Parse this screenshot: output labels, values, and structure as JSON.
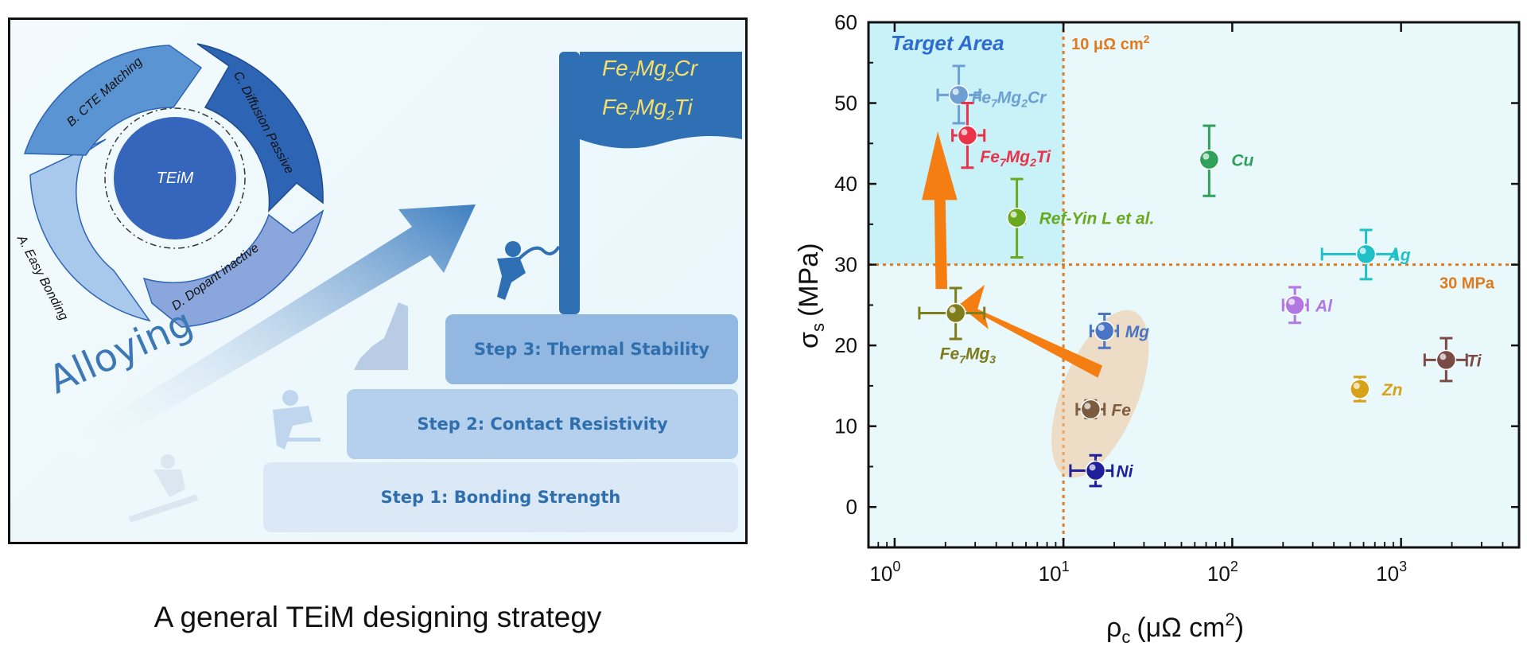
{
  "diagram": {
    "cycle_center": "TEiM",
    "cycle_items": [
      "A. Easy Bonding",
      "B. CTE Matching",
      "C. Diffusion Passive",
      "D. Dopant inactive"
    ],
    "alloying_label": "Alloying",
    "steps": [
      "Step 1: Bonding Strength",
      "Step 2: Contact Resistivity",
      "Step 3: Thermal Stability"
    ],
    "flag": {
      "line1_base": [
        "Fe",
        "Mg",
        "Cr"
      ],
      "line1_subs": [
        "7",
        "2"
      ],
      "line2_base": [
        "Fe",
        "Mg",
        "Ti"
      ],
      "line2_subs": [
        "7",
        "2"
      ]
    },
    "colors": {
      "cycle_light": "#a9c9ec",
      "cycle_mid": "#5b94d2",
      "cycle_dark": "#2e64b4",
      "center": "#3566bb",
      "flag": "#2f6fb3",
      "flag_text": "#f7e06a"
    }
  },
  "caption": "A general TEiM designing strategy",
  "chart_data": {
    "type": "scatter",
    "xlabel_base": "ρ",
    "xlabel_sub": "c",
    "xlabel_unit": "(μΩ cm",
    "xlabel_sup": "2",
    "ylabel_base": "σ",
    "ylabel_sub": "s",
    "ylabel_unit": "(MPa)",
    "x_scale": "log",
    "xlim": [
      0.7,
      5000
    ],
    "ylim": [
      -5,
      60
    ],
    "yticks": [
      0,
      10,
      20,
      30,
      40,
      50,
      60
    ],
    "xticks": [
      1,
      10,
      100,
      1000
    ],
    "xtick_labels": [
      {
        "base": "10",
        "exp": "0"
      },
      {
        "base": "10",
        "exp": "1"
      },
      {
        "base": "10",
        "exp": "2"
      },
      {
        "base": "10",
        "exp": "3"
      }
    ],
    "grid": false,
    "background": "#e8f8fb",
    "target_area": {
      "label": "Target Area",
      "x": [
        0.7,
        10
      ],
      "y": [
        30,
        60
      ],
      "color": "#c8f2f7",
      "label_color": "#2e6bd1"
    },
    "reference_lines": [
      {
        "axis": "x",
        "value": 10,
        "label": "10 μΩ cm",
        "label_sup": "2",
        "color": "#e07a1f"
      },
      {
        "axis": "y",
        "value": 30,
        "label": "30 MPa",
        "color": "#e07a1f"
      }
    ],
    "points": [
      {
        "label": "Fe",
        "label_subs": [
          "7",
          "2"
        ],
        "label_parts": [
          "Fe",
          "Mg",
          "Cr"
        ],
        "x": 2.4,
        "y": 51,
        "xerr": [
          1.8,
          3.2
        ],
        "yerr": [
          47.5,
          54.6
        ],
        "color": "#6d9fd2"
      },
      {
        "label": "Fe",
        "label_subs": [
          "7",
          "2"
        ],
        "label_parts": [
          "Fe",
          "Mg",
          "Ti"
        ],
        "x": 2.7,
        "y": 46,
        "xerr": [
          2.2,
          3.4
        ],
        "yerr": [
          42,
          50
        ],
        "color": "#e8334a"
      },
      {
        "label": "Ref-Yin L et al.",
        "x": 5.3,
        "y": 35.8,
        "xerr": [
          4.8,
          5.9
        ],
        "yerr": [
          30.9,
          40.6
        ],
        "color": "#6aa81f"
      },
      {
        "label": "Fe",
        "label_subs": [
          "7",
          "3"
        ],
        "label_parts": [
          "Fe",
          "Mg"
        ],
        "x": 2.3,
        "y": 24,
        "xerr": [
          1.4,
          3.4
        ],
        "yerr": [
          20.8,
          27.1
        ],
        "color": "#7d7d1c"
      },
      {
        "label": "Cu",
        "x": 73,
        "y": 43,
        "xerr": [
          67,
          80
        ],
        "yerr": [
          38.5,
          47.2
        ],
        "color": "#2fa15b"
      },
      {
        "label": "Ag",
        "x": 620,
        "y": 31.3,
        "xerr": [
          340,
          930
        ],
        "yerr": [
          28.2,
          34.3
        ],
        "color": "#20c0c8"
      },
      {
        "label": "Al",
        "x": 235,
        "y": 25,
        "xerr": [
          200,
          280
        ],
        "yerr": [
          22.8,
          27.2
        ],
        "color": "#b078e0"
      },
      {
        "label": "Ti",
        "x": 1850,
        "y": 18.2,
        "xerr": [
          1380,
          2450
        ],
        "yerr": [
          15.6,
          20.9
        ],
        "color": "#7a4a44"
      },
      {
        "label": "Zn",
        "x": 570,
        "y": 14.6,
        "xerr": [
          520,
          630
        ],
        "yerr": [
          13.1,
          16.1
        ],
        "color": "#d6a21a"
      },
      {
        "label": "Mg",
        "x": 17.5,
        "y": 21.8,
        "xerr": [
          14.5,
          21
        ],
        "yerr": [
          19.7,
          23.9
        ],
        "color": "#4a74c4"
      },
      {
        "label": "Fe",
        "x": 14.5,
        "y": 12.1,
        "xerr": [
          12,
          17.5
        ],
        "yerr": [
          11,
          13.2
        ],
        "color": "#7c5c3e"
      },
      {
        "label": "Ni",
        "x": 15.5,
        "y": 4.5,
        "xerr": [
          11,
          19.5
        ],
        "yerr": [
          2.6,
          6.4
        ],
        "color": "#1f1f9a"
      }
    ]
  }
}
